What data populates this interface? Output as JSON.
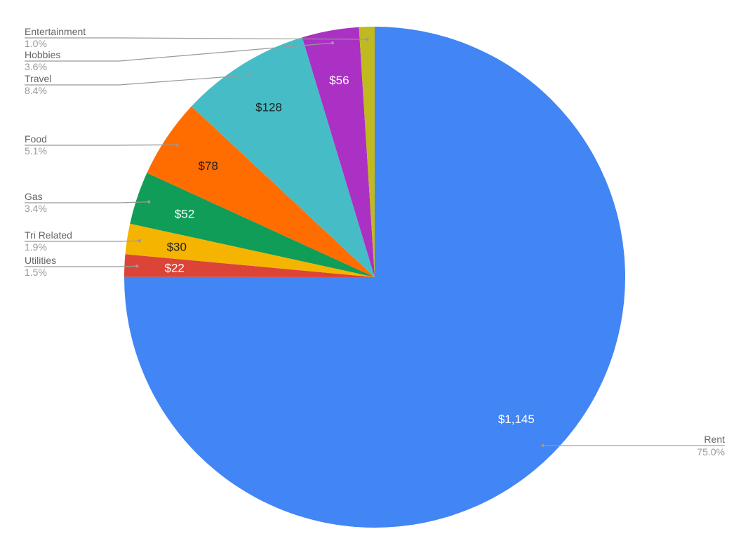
{
  "chart_data": {
    "type": "pie",
    "title": "",
    "start_angle": "12 o'clock",
    "direction": "clockwise",
    "slices": [
      {
        "label": "Rent",
        "value": 1145,
        "value_label": "$1,145",
        "percent_label": "75.0%",
        "color": "#4285f4",
        "text_color": "#ffffff"
      },
      {
        "label": "Utilities",
        "value": 22,
        "value_label": "$22",
        "percent_label": "1.5%",
        "color": "#db4437",
        "text_color": "#ffffff"
      },
      {
        "label": "Tri Related",
        "value": 30,
        "value_label": "$30",
        "percent_label": "1.9%",
        "color": "#f4b400",
        "text_color": "#222222"
      },
      {
        "label": "Gas",
        "value": 52,
        "value_label": "$52",
        "percent_label": "3.4%",
        "color": "#0f9d58",
        "text_color": "#ffffff"
      },
      {
        "label": "Food",
        "value": 78,
        "value_label": "$78",
        "percent_label": "5.1%",
        "color": "#ff6d01",
        "text_color": "#222222"
      },
      {
        "label": "Travel",
        "value": 128,
        "value_label": "$128",
        "percent_label": "8.4%",
        "color": "#46bdc6",
        "text_color": "#222222"
      },
      {
        "label": "Hobbies",
        "value": 56,
        "value_label": "$56",
        "percent_label": "3.6%",
        "color": "#ab30c4",
        "text_color": "#ffffff"
      },
      {
        "label": "Entertainment",
        "value": 15.3,
        "value_label": "",
        "percent_label": "1.0%",
        "color": "#c0b91f",
        "text_color": "#222222"
      }
    ]
  }
}
